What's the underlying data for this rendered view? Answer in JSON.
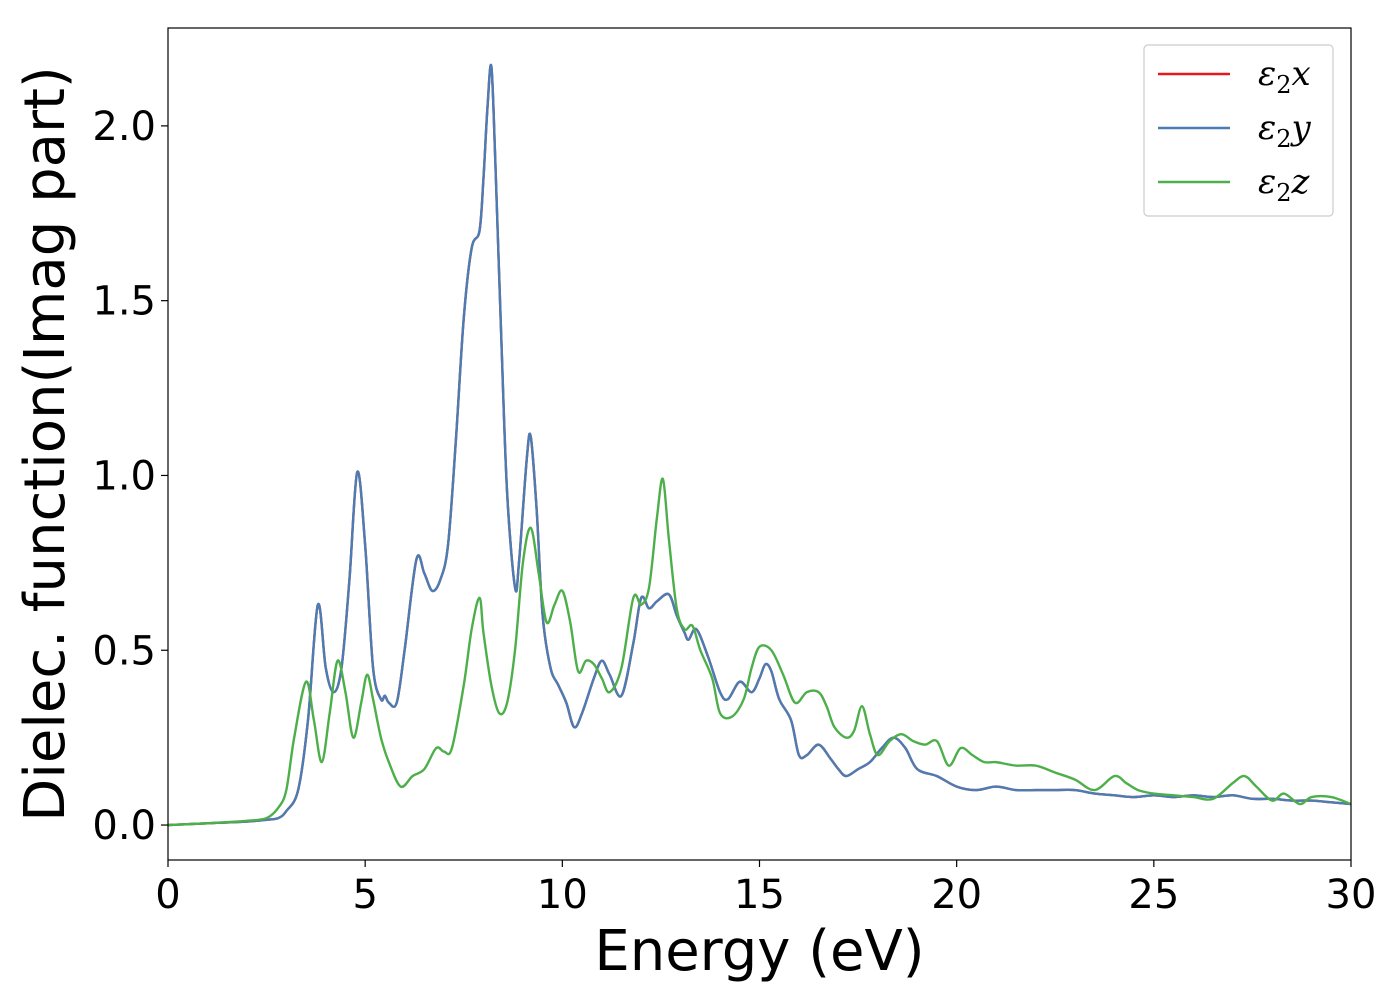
{
  "chart_data": {
    "type": "line",
    "title": "",
    "xlabel": "Energy (eV)",
    "ylabel": "Dielec. function(Imag part)",
    "xlim": [
      0,
      30
    ],
    "ylim": [
      -0.1,
      2.28
    ],
    "xticks": [
      0,
      5,
      10,
      15,
      20,
      25,
      30
    ],
    "xtick_labels": [
      "0",
      "5",
      "10",
      "15",
      "20",
      "25",
      "30"
    ],
    "yticks": [
      0.0,
      0.5,
      1.0,
      1.5,
      2.0
    ],
    "ytick_labels": [
      "0.0",
      "0.5",
      "1.0",
      "1.5",
      "2.0"
    ],
    "grid": false,
    "legend_position": "top-right",
    "series": [
      {
        "name": "ε2x",
        "name_base": "ε",
        "name_sub": "2",
        "name_var": "x",
        "color": "#e41a1c",
        "x": [
          0,
          1,
          2,
          2.5,
          2.8,
          3.0,
          3.3,
          3.55,
          3.8,
          4.0,
          4.2,
          4.4,
          4.6,
          4.8,
          5.0,
          5.2,
          5.4,
          5.5,
          5.6,
          5.8,
          6.0,
          6.3,
          6.5,
          6.7,
          6.9,
          7.1,
          7.3,
          7.5,
          7.7,
          7.9,
          8.0,
          8.1,
          8.2,
          8.3,
          8.45,
          8.6,
          8.8,
          8.9,
          9.1,
          9.2,
          9.35,
          9.5,
          9.7,
          9.9,
          10.1,
          10.3,
          10.5,
          10.8,
          11.0,
          11.2,
          11.5,
          11.8,
          12.0,
          12.2,
          12.4,
          12.7,
          12.9,
          13.1,
          13.2,
          13.4,
          13.7,
          14.0,
          14.2,
          14.5,
          14.8,
          15.0,
          15.15,
          15.3,
          15.5,
          15.8,
          16.0,
          16.2,
          16.5,
          16.8,
          17.0,
          17.2,
          17.5,
          17.8,
          18.1,
          18.4,
          18.7,
          19.0,
          19.5,
          20.0,
          20.5,
          21.0,
          21.5,
          22.0,
          22.5,
          23.0,
          23.5,
          24.0,
          24.5,
          25.0,
          25.5,
          26.0,
          26.5,
          27.0,
          27.5,
          28.0,
          28.5,
          29.0,
          29.5,
          30
        ],
        "values": [
          0.0,
          0.005,
          0.01,
          0.015,
          0.02,
          0.04,
          0.1,
          0.3,
          0.63,
          0.45,
          0.38,
          0.45,
          0.7,
          1.01,
          0.8,
          0.45,
          0.36,
          0.37,
          0.35,
          0.35,
          0.5,
          0.76,
          0.72,
          0.67,
          0.7,
          0.8,
          1.1,
          1.45,
          1.65,
          1.7,
          1.85,
          2.05,
          2.17,
          1.9,
          1.4,
          0.95,
          0.68,
          0.75,
          1.05,
          1.11,
          0.9,
          0.6,
          0.45,
          0.4,
          0.35,
          0.28,
          0.32,
          0.42,
          0.47,
          0.43,
          0.37,
          0.52,
          0.65,
          0.62,
          0.64,
          0.66,
          0.6,
          0.55,
          0.53,
          0.56,
          0.48,
          0.38,
          0.36,
          0.41,
          0.38,
          0.42,
          0.46,
          0.44,
          0.36,
          0.3,
          0.2,
          0.2,
          0.23,
          0.19,
          0.16,
          0.14,
          0.16,
          0.18,
          0.22,
          0.25,
          0.22,
          0.16,
          0.14,
          0.11,
          0.1,
          0.11,
          0.1,
          0.1,
          0.1,
          0.1,
          0.09,
          0.085,
          0.08,
          0.085,
          0.08,
          0.085,
          0.08,
          0.085,
          0.075,
          0.075,
          0.07,
          0.07,
          0.065,
          0.06
        ]
      },
      {
        "name": "ε2y",
        "name_base": "ε",
        "name_sub": "2",
        "name_var": "y",
        "color": "#4a7db4",
        "x": [
          0,
          1,
          2,
          2.5,
          2.8,
          3.0,
          3.3,
          3.55,
          3.8,
          4.0,
          4.2,
          4.4,
          4.6,
          4.8,
          5.0,
          5.2,
          5.4,
          5.5,
          5.6,
          5.8,
          6.0,
          6.3,
          6.5,
          6.7,
          6.9,
          7.1,
          7.3,
          7.5,
          7.7,
          7.9,
          8.0,
          8.1,
          8.2,
          8.3,
          8.45,
          8.6,
          8.8,
          8.9,
          9.1,
          9.2,
          9.35,
          9.5,
          9.7,
          9.9,
          10.1,
          10.3,
          10.5,
          10.8,
          11.0,
          11.2,
          11.5,
          11.8,
          12.0,
          12.2,
          12.4,
          12.7,
          12.9,
          13.1,
          13.2,
          13.4,
          13.7,
          14.0,
          14.2,
          14.5,
          14.8,
          15.0,
          15.15,
          15.3,
          15.5,
          15.8,
          16.0,
          16.2,
          16.5,
          16.8,
          17.0,
          17.2,
          17.5,
          17.8,
          18.1,
          18.4,
          18.7,
          19.0,
          19.5,
          20.0,
          20.5,
          21.0,
          21.5,
          22.0,
          22.5,
          23.0,
          23.5,
          24.0,
          24.5,
          25.0,
          25.5,
          26.0,
          26.5,
          27.0,
          27.5,
          28.0,
          28.5,
          29.0,
          29.5,
          30
        ],
        "values": [
          0.0,
          0.005,
          0.01,
          0.015,
          0.02,
          0.04,
          0.1,
          0.3,
          0.63,
          0.45,
          0.38,
          0.45,
          0.7,
          1.01,
          0.8,
          0.45,
          0.36,
          0.37,
          0.35,
          0.35,
          0.5,
          0.76,
          0.72,
          0.67,
          0.7,
          0.8,
          1.1,
          1.45,
          1.65,
          1.7,
          1.85,
          2.05,
          2.17,
          1.9,
          1.4,
          0.95,
          0.68,
          0.75,
          1.05,
          1.11,
          0.9,
          0.6,
          0.45,
          0.4,
          0.35,
          0.28,
          0.32,
          0.42,
          0.47,
          0.43,
          0.37,
          0.52,
          0.65,
          0.62,
          0.64,
          0.66,
          0.6,
          0.55,
          0.53,
          0.56,
          0.48,
          0.38,
          0.36,
          0.41,
          0.38,
          0.42,
          0.46,
          0.44,
          0.36,
          0.3,
          0.2,
          0.2,
          0.23,
          0.19,
          0.16,
          0.14,
          0.16,
          0.18,
          0.22,
          0.25,
          0.22,
          0.16,
          0.14,
          0.11,
          0.1,
          0.11,
          0.1,
          0.1,
          0.1,
          0.1,
          0.09,
          0.085,
          0.08,
          0.085,
          0.08,
          0.085,
          0.08,
          0.085,
          0.075,
          0.075,
          0.07,
          0.07,
          0.065,
          0.06
        ]
      },
      {
        "name": "ε2z",
        "name_base": "ε",
        "name_sub": "2",
        "name_var": "z",
        "color": "#4daf4a",
        "x": [
          0,
          1,
          2,
          2.5,
          2.8,
          3.0,
          3.2,
          3.5,
          3.7,
          3.9,
          4.1,
          4.3,
          4.5,
          4.7,
          4.9,
          5.05,
          5.2,
          5.4,
          5.6,
          5.9,
          6.2,
          6.5,
          6.8,
          7.0,
          7.2,
          7.5,
          7.7,
          7.9,
          8.0,
          8.2,
          8.4,
          8.6,
          8.8,
          9.0,
          9.2,
          9.4,
          9.6,
          9.8,
          10.0,
          10.2,
          10.4,
          10.6,
          10.8,
          11.0,
          11.2,
          11.5,
          11.8,
          12.0,
          12.2,
          12.4,
          12.55,
          12.7,
          12.9,
          13.1,
          13.3,
          13.5,
          13.8,
          14.0,
          14.3,
          14.6,
          14.8,
          15.0,
          15.3,
          15.6,
          15.9,
          16.2,
          16.5,
          16.7,
          16.9,
          17.2,
          17.4,
          17.6,
          17.8,
          18.0,
          18.3,
          18.6,
          18.9,
          19.2,
          19.5,
          19.8,
          20.1,
          20.4,
          20.7,
          21.0,
          21.5,
          22.0,
          22.5,
          23.0,
          23.5,
          24.0,
          24.3,
          24.6,
          25.0,
          25.5,
          26.0,
          26.5,
          27.0,
          27.3,
          27.6,
          28.0,
          28.3,
          28.7,
          29.0,
          29.5,
          30
        ],
        "values": [
          0.0,
          0.005,
          0.012,
          0.02,
          0.05,
          0.1,
          0.25,
          0.41,
          0.3,
          0.18,
          0.32,
          0.47,
          0.38,
          0.25,
          0.35,
          0.43,
          0.36,
          0.25,
          0.18,
          0.11,
          0.14,
          0.16,
          0.22,
          0.21,
          0.22,
          0.4,
          0.56,
          0.65,
          0.55,
          0.4,
          0.32,
          0.35,
          0.5,
          0.75,
          0.85,
          0.72,
          0.58,
          0.63,
          0.67,
          0.58,
          0.44,
          0.47,
          0.46,
          0.42,
          0.38,
          0.45,
          0.65,
          0.63,
          0.68,
          0.88,
          0.99,
          0.82,
          0.62,
          0.56,
          0.57,
          0.5,
          0.42,
          0.32,
          0.31,
          0.36,
          0.45,
          0.51,
          0.5,
          0.43,
          0.35,
          0.38,
          0.38,
          0.34,
          0.28,
          0.25,
          0.27,
          0.34,
          0.26,
          0.2,
          0.24,
          0.26,
          0.24,
          0.23,
          0.24,
          0.17,
          0.22,
          0.2,
          0.18,
          0.18,
          0.17,
          0.17,
          0.15,
          0.13,
          0.1,
          0.14,
          0.12,
          0.1,
          0.09,
          0.085,
          0.08,
          0.075,
          0.12,
          0.14,
          0.11,
          0.07,
          0.09,
          0.06,
          0.08,
          0.08,
          0.06
        ]
      }
    ]
  }
}
